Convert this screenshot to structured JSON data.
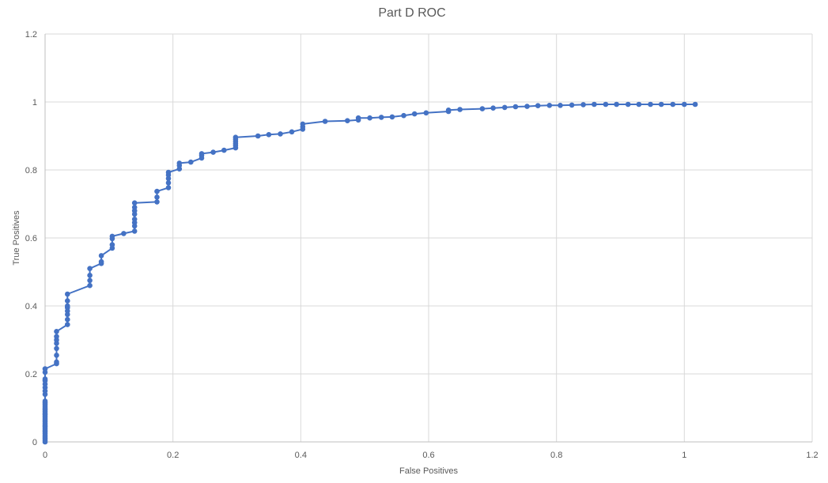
{
  "chart_data": {
    "type": "scatter",
    "title": "Part D ROC",
    "xlabel": "False Positives",
    "ylabel": "True Positives",
    "xlim": [
      0,
      1.2
    ],
    "ylim": [
      0,
      1.2
    ],
    "x_ticks": [
      "0",
      "0.2",
      "0.4",
      "0.6",
      "0.8",
      "1",
      "1.2"
    ],
    "y_ticks": [
      "0",
      "0.2",
      "0.4",
      "0.6",
      "0.8",
      "1",
      "1.2"
    ],
    "grid": true,
    "legend": "none",
    "series_color": "#4472C4",
    "series": [
      {
        "values": [
          [
            0,
            0
          ],
          [
            0,
            0.005
          ],
          [
            0,
            0.01
          ],
          [
            0,
            0.015
          ],
          [
            0,
            0.02
          ],
          [
            0,
            0.025
          ],
          [
            0,
            0.03
          ],
          [
            0,
            0.035
          ],
          [
            0,
            0.04
          ],
          [
            0,
            0.045
          ],
          [
            0,
            0.05
          ],
          [
            0,
            0.055
          ],
          [
            0,
            0.06
          ],
          [
            0,
            0.065
          ],
          [
            0,
            0.07
          ],
          [
            0,
            0.075
          ],
          [
            0,
            0.08
          ],
          [
            0,
            0.085
          ],
          [
            0,
            0.09
          ],
          [
            0,
            0.095
          ],
          [
            0,
            0.1
          ],
          [
            0,
            0.105
          ],
          [
            0,
            0.11
          ],
          [
            0,
            0.115
          ],
          [
            0,
            0.12
          ],
          [
            0,
            0.14
          ],
          [
            0,
            0.15
          ],
          [
            0,
            0.16
          ],
          [
            0,
            0.17
          ],
          [
            0,
            0.18
          ],
          [
            0,
            0.185
          ],
          [
            0,
            0.205
          ],
          [
            0,
            0.215
          ],
          [
            0.018,
            0.23
          ],
          [
            0.018,
            0.235
          ],
          [
            0.018,
            0.255
          ],
          [
            0.018,
            0.275
          ],
          [
            0.018,
            0.29
          ],
          [
            0.018,
            0.3
          ],
          [
            0.018,
            0.31
          ],
          [
            0.018,
            0.325
          ],
          [
            0.035,
            0.345
          ],
          [
            0.035,
            0.36
          ],
          [
            0.035,
            0.375
          ],
          [
            0.035,
            0.385
          ],
          [
            0.035,
            0.395
          ],
          [
            0.035,
            0.4
          ],
          [
            0.035,
            0.415
          ],
          [
            0.035,
            0.435
          ],
          [
            0.07,
            0.46
          ],
          [
            0.07,
            0.475
          ],
          [
            0.07,
            0.49
          ],
          [
            0.07,
            0.51
          ],
          [
            0.088,
            0.525
          ],
          [
            0.088,
            0.53
          ],
          [
            0.088,
            0.548
          ],
          [
            0.105,
            0.57
          ],
          [
            0.105,
            0.58
          ],
          [
            0.105,
            0.598
          ],
          [
            0.105,
            0.605
          ],
          [
            0.123,
            0.613
          ],
          [
            0.14,
            0.62
          ],
          [
            0.14,
            0.635
          ],
          [
            0.14,
            0.645
          ],
          [
            0.14,
            0.655
          ],
          [
            0.14,
            0.67
          ],
          [
            0.14,
            0.68
          ],
          [
            0.14,
            0.69
          ],
          [
            0.14,
            0.703
          ],
          [
            0.175,
            0.706
          ],
          [
            0.175,
            0.72
          ],
          [
            0.175,
            0.737
          ],
          [
            0.193,
            0.748
          ],
          [
            0.193,
            0.762
          ],
          [
            0.193,
            0.775
          ],
          [
            0.193,
            0.785
          ],
          [
            0.193,
            0.793
          ],
          [
            0.21,
            0.803
          ],
          [
            0.21,
            0.813
          ],
          [
            0.21,
            0.82
          ],
          [
            0.228,
            0.823
          ],
          [
            0.245,
            0.835
          ],
          [
            0.245,
            0.843
          ],
          [
            0.245,
            0.848
          ],
          [
            0.263,
            0.852
          ],
          [
            0.28,
            0.858
          ],
          [
            0.298,
            0.865
          ],
          [
            0.298,
            0.872
          ],
          [
            0.298,
            0.878
          ],
          [
            0.298,
            0.884
          ],
          [
            0.298,
            0.89
          ],
          [
            0.298,
            0.896
          ],
          [
            0.333,
            0.9
          ],
          [
            0.35,
            0.904
          ],
          [
            0.368,
            0.906
          ],
          [
            0.386,
            0.912
          ],
          [
            0.403,
            0.92
          ],
          [
            0.403,
            0.927
          ],
          [
            0.403,
            0.935
          ],
          [
            0.438,
            0.943
          ],
          [
            0.473,
            0.945
          ],
          [
            0.49,
            0.947
          ],
          [
            0.49,
            0.953
          ],
          [
            0.508,
            0.953
          ],
          [
            0.526,
            0.955
          ],
          [
            0.543,
            0.956
          ],
          [
            0.561,
            0.96
          ],
          [
            0.578,
            0.965
          ],
          [
            0.596,
            0.968
          ],
          [
            0.631,
            0.972
          ],
          [
            0.631,
            0.976
          ],
          [
            0.649,
            0.978
          ],
          [
            0.684,
            0.98
          ],
          [
            0.701,
            0.982
          ],
          [
            0.719,
            0.984
          ],
          [
            0.736,
            0.986
          ],
          [
            0.754,
            0.987
          ],
          [
            0.771,
            0.989
          ],
          [
            0.789,
            0.99
          ],
          [
            0.806,
            0.99
          ],
          [
            0.824,
            0.991
          ],
          [
            0.842,
            0.992
          ],
          [
            0.859,
            0.993
          ],
          [
            0.877,
            0.993
          ],
          [
            0.894,
            0.993
          ],
          [
            0.912,
            0.993
          ],
          [
            0.929,
            0.993
          ],
          [
            0.947,
            0.993
          ],
          [
            0.964,
            0.993
          ],
          [
            0.982,
            0.993
          ],
          [
            1.0,
            0.993
          ],
          [
            1.017,
            0.993
          ]
        ]
      }
    ]
  }
}
